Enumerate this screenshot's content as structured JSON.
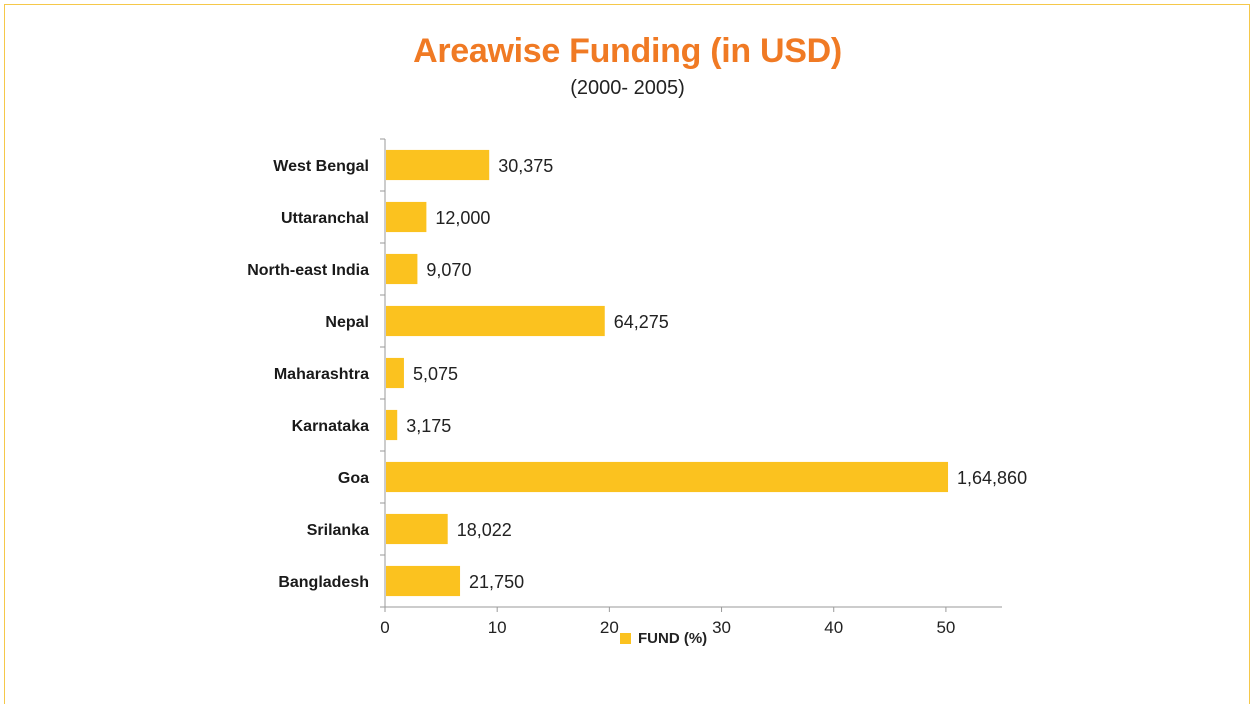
{
  "chart_data": {
    "type": "bar",
    "orientation": "horizontal",
    "title": "Areawise Funding (in USD)",
    "subtitle": "(2000- 2005)",
    "categories": [
      "West Bengal",
      "Uttaranchal",
      "North-east India",
      "Nepal",
      "Maharashtra",
      "Karnataka",
      "Goa",
      "Srilanka",
      "Bangladesh"
    ],
    "series": [
      {
        "name": "FUND (%)",
        "values": [
          9.2,
          3.6,
          2.8,
          19.5,
          1.6,
          1.0,
          50.1,
          5.5,
          6.6
        ],
        "data_labels": [
          "30,375",
          "12,000",
          "9,070",
          "64,275",
          "5,075",
          "3,175",
          "1,64,860",
          "18,022",
          "21,750"
        ]
      }
    ],
    "xlim": [
      0,
      55
    ],
    "xticks": [
      0,
      10,
      20,
      30,
      40,
      50
    ],
    "grid": false,
    "legend_position": "bottom",
    "colors": {
      "bar": "#fbc21f",
      "title": "#f07a24",
      "axis": "#9a9a9a",
      "frame": "#f5c84a"
    }
  }
}
